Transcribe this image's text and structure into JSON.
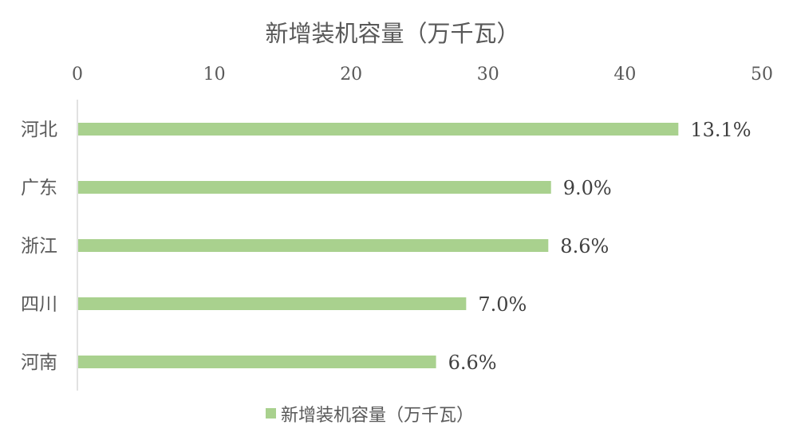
{
  "chart_data": {
    "type": "bar",
    "orientation": "horizontal",
    "title": "新增装机容量（万千瓦）",
    "categories": [
      "河北",
      "广东",
      "浙江",
      "四川",
      "河南"
    ],
    "series": [
      {
        "name": "新增装机容量（万千瓦）",
        "values": [
          43.9,
          34.6,
          34.4,
          28.4,
          26.2
        ],
        "data_labels": [
          "13.1%",
          "9.0%",
          "8.6%",
          "7.0%",
          "6.6%"
        ],
        "color": "#a9d18e"
      }
    ],
    "xlim": [
      0,
      50
    ],
    "xticks": [
      "0",
      "10",
      "20",
      "30",
      "40",
      "50"
    ],
    "x_axis_position": "top",
    "grid": false,
    "legend": "bottom"
  }
}
